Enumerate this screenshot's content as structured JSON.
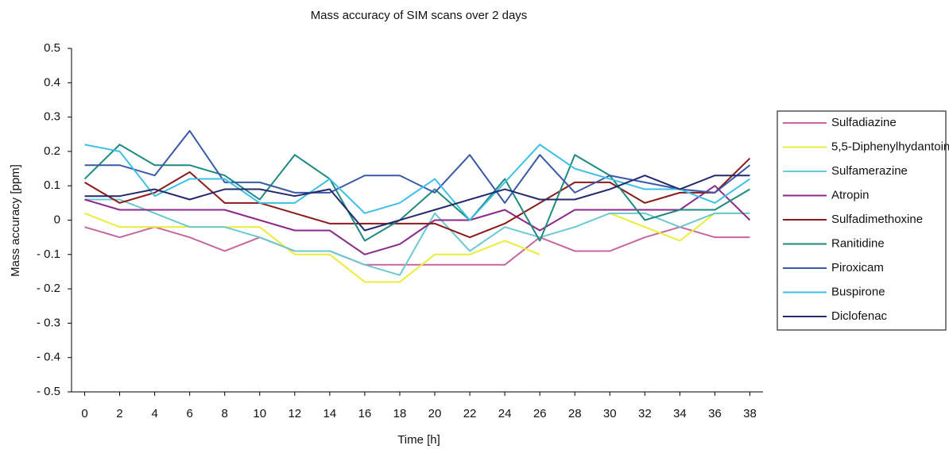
{
  "chart_data": {
    "type": "line",
    "title": "Mass accuracy of SIM scans over 2 days",
    "x_label": "Time [h]",
    "y_label": "Mass accuracy [ppm]",
    "x": [
      0,
      2,
      4,
      6,
      8,
      10,
      12,
      14,
      16,
      18,
      20,
      22,
      24,
      26,
      28,
      30,
      32,
      34,
      36,
      38
    ],
    "xlim": [
      -0.75,
      38.75
    ],
    "xticks": [
      0,
      2,
      4,
      6,
      8,
      10,
      12,
      14,
      16,
      18,
      20,
      22,
      24,
      26,
      28,
      30,
      32,
      34,
      36,
      38
    ],
    "ylim": [
      -0.5,
      0.5
    ],
    "yticks": [
      {
        "value": -0.5,
        "label": "- 0.5"
      },
      {
        "value": -0.4,
        "label": "- 0.4"
      },
      {
        "value": -0.3,
        "label": "- 0.3"
      },
      {
        "value": -0.2,
        "label": "- 0.2"
      },
      {
        "value": -0.1,
        "label": "- 0.1"
      },
      0,
      0.1,
      0.2,
      0.3,
      0.4,
      0.5
    ],
    "grid": false,
    "legend": "right",
    "series": [
      {
        "name": "Sulfadiazine",
        "color": "#c8669e",
        "values": [
          -0.02,
          -0.05,
          -0.02,
          -0.05,
          -0.09,
          -0.05,
          -0.09,
          -0.09,
          -0.13,
          -0.13,
          -0.13,
          -0.13,
          -0.13,
          -0.05,
          -0.09,
          -0.09,
          -0.05,
          -0.02,
          -0.05,
          -0.05
        ]
      },
      {
        "name": "5,5-Diphenylhydantoin",
        "color": "#ecec3a",
        "values": [
          0.02,
          -0.02,
          -0.02,
          -0.02,
          -0.02,
          -0.02,
          -0.1,
          -0.1,
          -0.18,
          -0.18,
          -0.1,
          -0.1,
          -0.06,
          -0.1,
          null,
          0.02,
          -0.02,
          -0.06,
          0.02,
          0.02
        ]
      },
      {
        "name": "Sulfamerazine",
        "color": "#6cc8d0",
        "values": [
          0.06,
          0.06,
          0.02,
          -0.02,
          -0.02,
          -0.05,
          -0.09,
          -0.09,
          -0.13,
          -0.16,
          0.02,
          -0.09,
          -0.02,
          -0.05,
          -0.02,
          0.02,
          0.02,
          -0.02,
          0.02,
          0.02
        ]
      },
      {
        "name": "Atropin",
        "color": "#8b2a8b",
        "values": [
          0.06,
          0.03,
          0.03,
          0.03,
          0.03,
          0,
          -0.03,
          -0.03,
          -0.1,
          -0.07,
          0,
          0,
          0.03,
          -0.03,
          0.03,
          0.03,
          0.03,
          0.03,
          0.1,
          0
        ]
      },
      {
        "name": "Sulfadimethoxine",
        "color": "#8b1a1a",
        "values": [
          0.11,
          0.05,
          0.08,
          0.14,
          0.05,
          0.05,
          0.02,
          -0.01,
          -0.01,
          -0.01,
          -0.01,
          -0.05,
          -0.01,
          0.05,
          0.11,
          0.11,
          0.05,
          0.08,
          0.08,
          0.18
        ]
      },
      {
        "name": "Ranitidine",
        "color": "#1e8a80",
        "values": [
          0.12,
          0.22,
          0.16,
          0.16,
          0.13,
          0.06,
          0.19,
          0.12,
          -0.06,
          0,
          0.09,
          0,
          0.12,
          -0.06,
          0.19,
          0.13,
          0,
          0.03,
          0.03,
          0.09
        ]
      },
      {
        "name": "Piroxicam",
        "color": "#3a5aa8",
        "values": [
          0.16,
          0.16,
          0.13,
          0.26,
          0.11,
          0.11,
          0.08,
          0.08,
          0.13,
          0.13,
          0.08,
          0.19,
          0.05,
          0.19,
          0.08,
          0.13,
          0.11,
          0.09,
          0.08,
          0.16
        ]
      },
      {
        "name": "Buspirone",
        "color": "#3cc0e6",
        "values": [
          0.22,
          0.2,
          0.07,
          0.12,
          0.12,
          0.05,
          0.05,
          0.12,
          0.02,
          0.05,
          0.12,
          0,
          0.11,
          0.22,
          0.15,
          0.12,
          0.09,
          0.09,
          0.05,
          0.12
        ]
      },
      {
        "name": "Diclofenac",
        "color": "#232a6e",
        "values": [
          0.07,
          0.07,
          0.09,
          0.06,
          0.09,
          0.09,
          0.07,
          0.09,
          -0.03,
          0,
          0.03,
          0.06,
          0.09,
          0.06,
          0.06,
          0.09,
          0.13,
          0.09,
          0.13,
          0.13
        ]
      }
    ]
  }
}
